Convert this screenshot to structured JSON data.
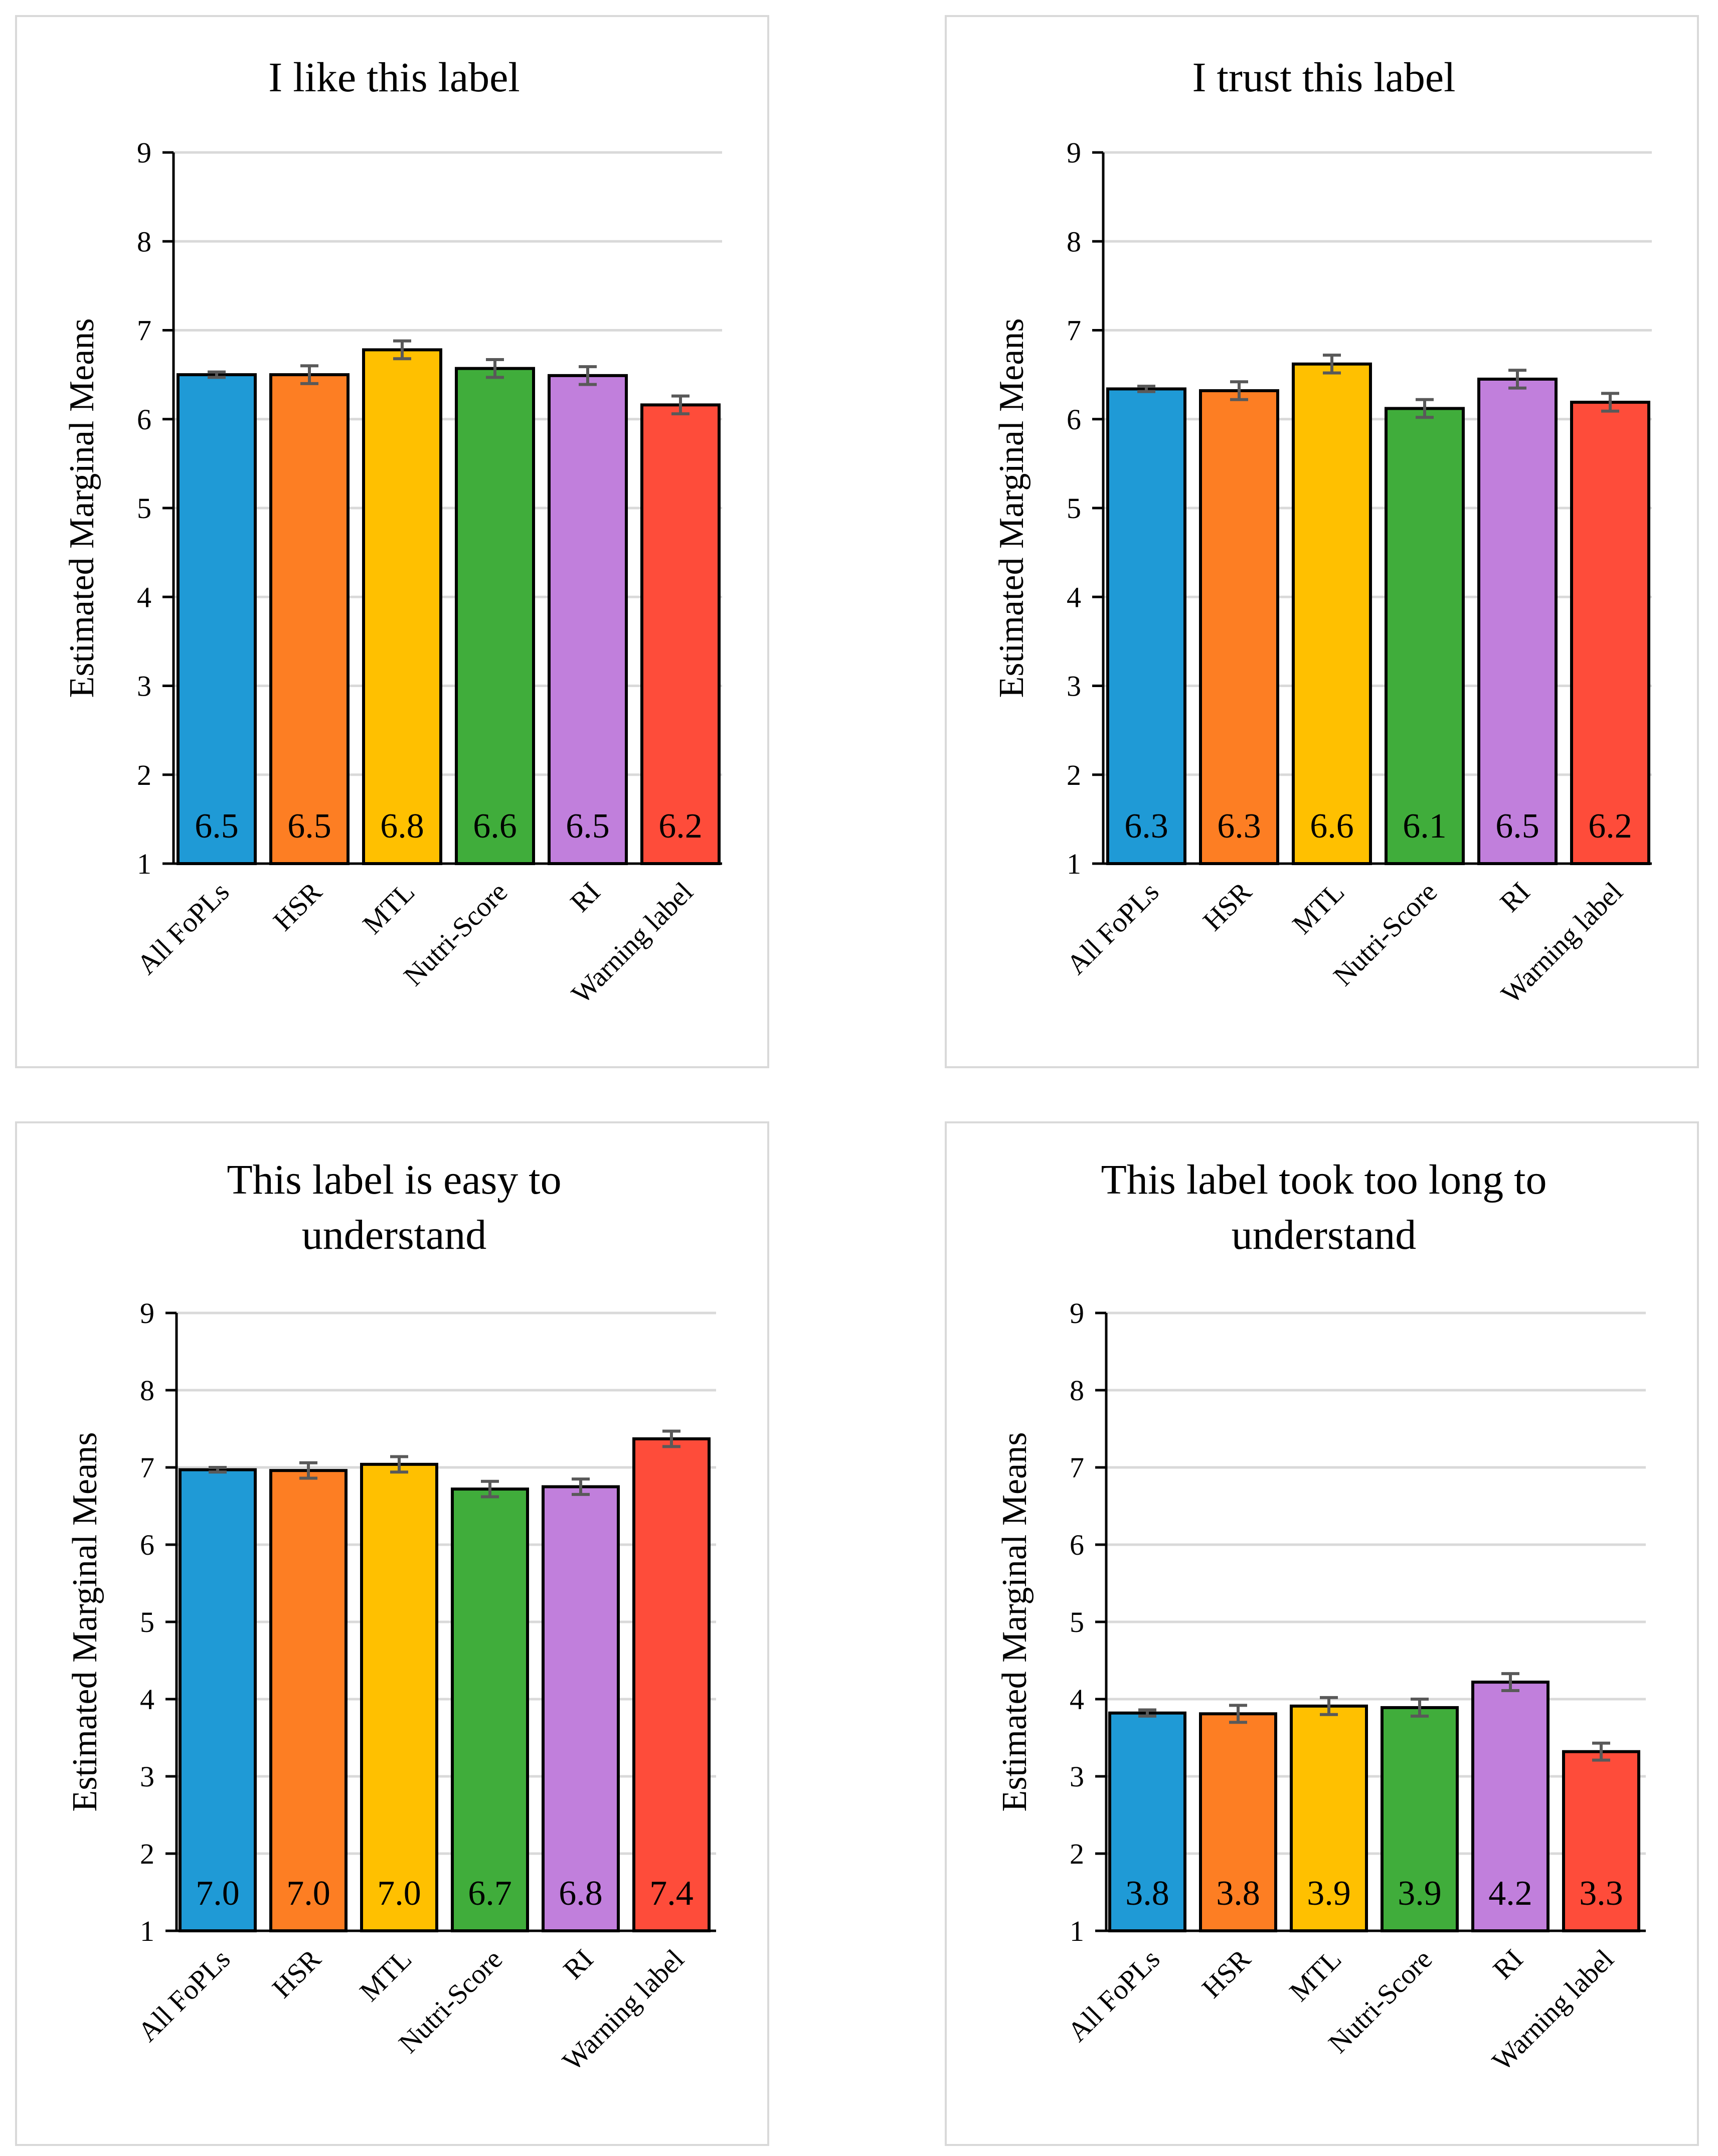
{
  "chart_data": [
    {
      "type": "bar",
      "title": [
        "I like this label"
      ],
      "ylabel": "Estimated Marginal Means",
      "ylim": [
        1,
        9
      ],
      "yticks": [
        "1",
        "2",
        "3",
        "4",
        "5",
        "6",
        "7",
        "8",
        "9"
      ],
      "categories": [
        "All FoPLs",
        "HSR",
        "MTL",
        "Nutri-Score",
        "RI",
        "Warning label"
      ],
      "values": [
        6.5,
        6.5,
        6.78,
        6.57,
        6.49,
        6.16
      ],
      "errors": [
        0.03,
        0.1,
        0.1,
        0.1,
        0.1,
        0.1
      ],
      "labels": [
        "6.5",
        "6.5",
        "6.8",
        "6.6",
        "6.5",
        "6.2"
      ]
    },
    {
      "type": "bar",
      "title": [
        "I trust this label"
      ],
      "ylabel": "Estimated Marginal Means",
      "ylim": [
        1,
        9
      ],
      "yticks": [
        "1",
        "2",
        "3",
        "4",
        "5",
        "6",
        "7",
        "8",
        "9"
      ],
      "categories": [
        "All FoPLs",
        "HSR",
        "MTL",
        "Nutri-Score",
        "RI",
        "Warning label"
      ],
      "values": [
        6.34,
        6.32,
        6.62,
        6.12,
        6.45,
        6.19
      ],
      "errors": [
        0.03,
        0.1,
        0.1,
        0.1,
        0.1,
        0.1
      ],
      "labels": [
        "6.3",
        "6.3",
        "6.6",
        "6.1",
        "6.5",
        "6.2"
      ]
    },
    {
      "type": "bar",
      "title": [
        "This label is easy to",
        "understand"
      ],
      "ylabel": "Estimated Marginal Means",
      "ylim": [
        1,
        9
      ],
      "yticks": [
        "1",
        "2",
        "3",
        "4",
        "5",
        "6",
        "7",
        "8",
        "9"
      ],
      "categories": [
        "All FoPLs",
        "HSR",
        "MTL",
        "Nutri-Score",
        "RI",
        "Warning label"
      ],
      "values": [
        6.97,
        6.96,
        7.04,
        6.72,
        6.75,
        7.37
      ],
      "errors": [
        0.03,
        0.1,
        0.1,
        0.1,
        0.1,
        0.1
      ],
      "labels": [
        "7.0",
        "7.0",
        "7.0",
        "6.7",
        "6.8",
        "7.4"
      ]
    },
    {
      "type": "bar",
      "title": [
        "This label took too long to",
        "understand"
      ],
      "ylabel": "Estimated Marginal Means",
      "ylim": [
        1,
        9
      ],
      "yticks": [
        "1",
        "2",
        "3",
        "4",
        "5",
        "6",
        "7",
        "8",
        "9"
      ],
      "categories": [
        "All FoPLs",
        "HSR",
        "MTL",
        "Nutri-Score",
        "RI",
        "Warning label"
      ],
      "values": [
        3.82,
        3.81,
        3.91,
        3.89,
        4.22,
        3.32
      ],
      "errors": [
        0.04,
        0.11,
        0.11,
        0.11,
        0.11,
        0.11
      ],
      "labels": [
        "3.8",
        "3.8",
        "3.9",
        "3.9",
        "4.2",
        "3.3"
      ]
    }
  ],
  "colors": [
    "#1f9ad6",
    "#fd7e23",
    "#ffc000",
    "#40ad3b",
    "#c17fdc",
    "#fe4c3a"
  ]
}
